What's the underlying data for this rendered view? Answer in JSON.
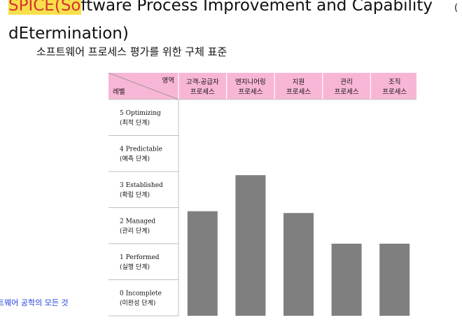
{
  "header": {
    "title_line1_highlight": "SPICE(So",
    "title_line1_rest": "ftware Process Improvement and Capability",
    "title_line2": "dEtermination)",
    "subtitle": "소프트웨어 프로세스 평가를 위한 구체 표준",
    "cut_mark": "(",
    "side_note": "트웨어 공학의 모든 것"
  },
  "colors": {
    "header_bg": "#f8b6d6",
    "bar": "#7f7f7f",
    "border": "#bfbfbf",
    "highlight": "#f7e04b"
  },
  "chart_data": {
    "type": "bar",
    "title": "",
    "header_corner": {
      "top": "영역",
      "bottom": "레벨"
    },
    "categories": [
      [
        "고객-공급자",
        "프로세스"
      ],
      [
        "엔지니어링",
        "프로세스"
      ],
      [
        "지원",
        "프로세스"
      ],
      [
        "관리",
        "프로세스"
      ],
      [
        "조직",
        "프로세스"
      ]
    ],
    "levels": [
      [
        "5 Optimizing",
        "(최적 단계)"
      ],
      [
        "4 Predictable",
        "(예측 단계)"
      ],
      [
        "3 Established",
        "(확립 단계)"
      ],
      [
        "2 Managed",
        "(관리 단계)"
      ],
      [
        "1 Performed",
        "(실행 단계)"
      ],
      [
        "0 Incomplete",
        "(미완성 단계)"
      ]
    ],
    "values": [
      2.9,
      3.9,
      2.85,
      2.0,
      2.0
    ],
    "ylim": [
      0,
      6
    ]
  }
}
